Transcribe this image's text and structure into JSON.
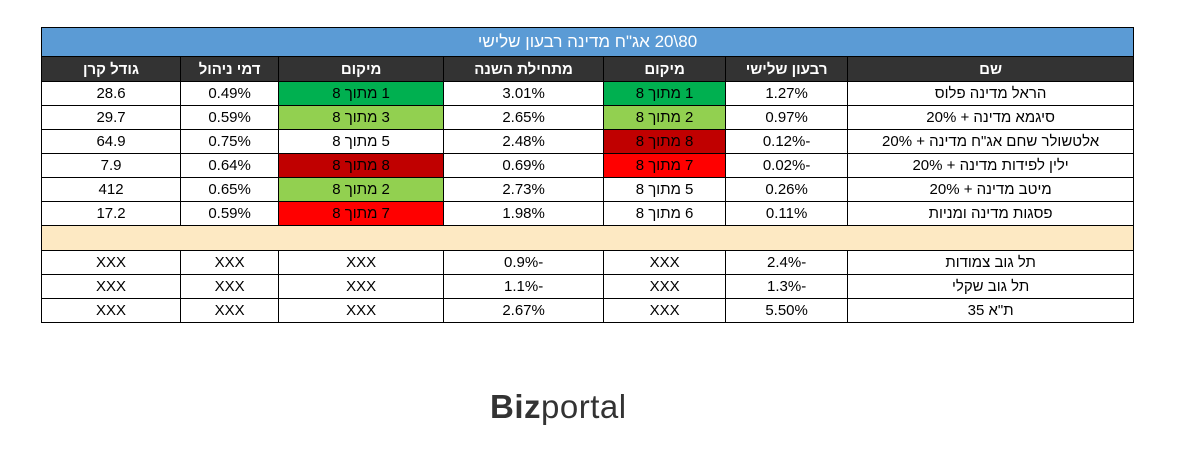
{
  "title": "80\\20 אג\"ח מדינה רבעון שלישי",
  "headers": [
    "שם",
    "רבעון שלישי",
    "מיקום",
    "מתחילת השנה",
    "מיקום",
    "דמי ניהול",
    "גודל קרן"
  ],
  "colors": {
    "dark_green": "#00b050",
    "light_green": "#92d050",
    "dark_red": "#c00000",
    "red": "#ff0000",
    "title_blue": "#5b9bd5",
    "header_dark": "#333333",
    "spacer": "#fde9c3"
  },
  "rows": [
    {
      "name": "הראל מדינה פלוס",
      "q3": "1.27%",
      "q3_rank": "1 מתוך 8",
      "q3_color": "#00b050",
      "ytd": "3.01%",
      "ytd_rank": "1 מתוך 8",
      "ytd_color": "#00b050",
      "fee": "0.49%",
      "size": "28.6"
    },
    {
      "name": "סיגמא מדינה + 20%",
      "q3": "0.97%",
      "q3_rank": "2 מתוך 8",
      "q3_color": "#92d050",
      "ytd": "2.65%",
      "ytd_rank": "3 מתוך 8",
      "ytd_color": "#92d050",
      "fee": "0.59%",
      "size": "29.7"
    },
    {
      "name": "אלטשולר שחם אג\"ח מדינה + 20%",
      "q3": "-0.12%",
      "q3_rank": "8 מתוך 8",
      "q3_color": "#c00000",
      "ytd": "2.48%",
      "ytd_rank": "5 מתוך 8",
      "ytd_color": "",
      "fee": "0.75%",
      "size": "64.9"
    },
    {
      "name": "ילין לפידות מדינה + 20%",
      "q3": "-0.02%",
      "q3_rank": "7 מתוך 8",
      "q3_color": "#ff0000",
      "ytd": "0.69%",
      "ytd_rank": "8 מתוך 8",
      "ytd_color": "#c00000",
      "fee": "0.64%",
      "size": "7.9"
    },
    {
      "name": "מיטב מדינה + 20%",
      "q3": "0.26%",
      "q3_rank": "5 מתוך 8",
      "q3_color": "",
      "ytd": "2.73%",
      "ytd_rank": "2 מתוך 8",
      "ytd_color": "#92d050",
      "fee": "0.65%",
      "size": "412"
    },
    {
      "name": "פסגות מדינה ומניות",
      "q3": "0.11%",
      "q3_rank": "6 מתוך 8",
      "q3_color": "",
      "ytd": "1.98%",
      "ytd_rank": "7 מתוך 8",
      "ytd_color": "#ff0000",
      "fee": "0.59%",
      "size": "17.2"
    }
  ],
  "index_rows": [
    {
      "name": "תל גוב צמודות",
      "q3": "-2.4%",
      "q3_rank": "XXX",
      "ytd": "-0.9%",
      "ytd_rank": "XXX",
      "fee": "XXX",
      "size": "XXX"
    },
    {
      "name": "תל גוב שקלי",
      "q3": "-1.3%",
      "q3_rank": "XXX",
      "ytd": "-1.1%",
      "ytd_rank": "XXX",
      "fee": "XXX",
      "size": "XXX"
    },
    {
      "name": "ת\"א 35",
      "q3": "5.50%",
      "q3_rank": "XXX",
      "ytd": "2.67%",
      "ytd_rank": "XXX",
      "fee": "XXX",
      "size": "XXX"
    }
  ],
  "logo": {
    "bold": "Biz",
    "regular": "portal"
  }
}
